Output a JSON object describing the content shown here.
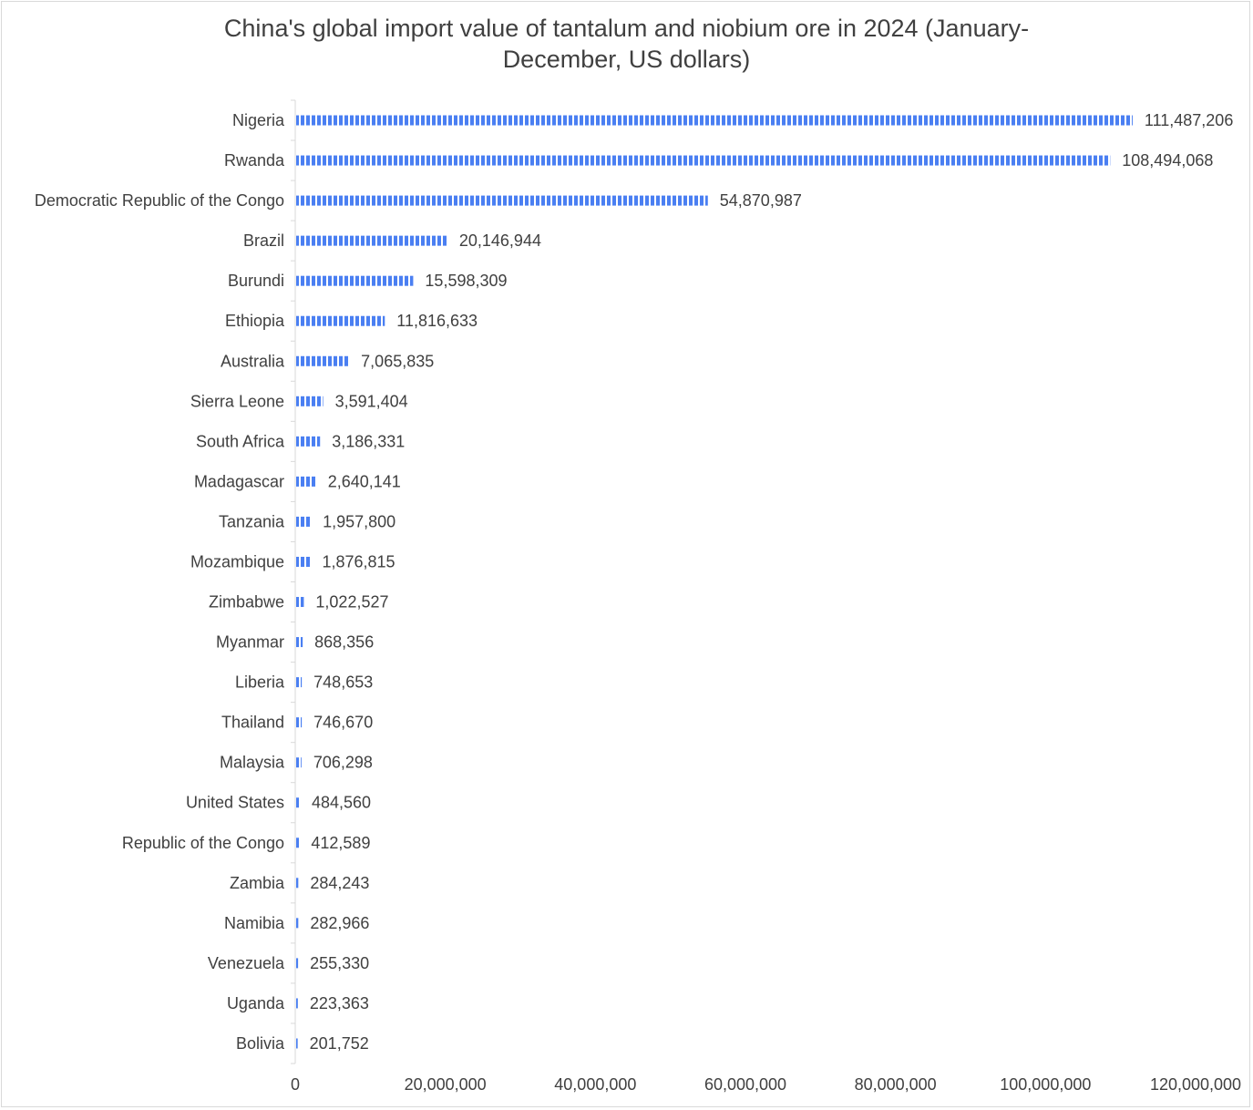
{
  "chart_data": {
    "type": "bar",
    "orientation": "horizontal",
    "title": "China's global import value of tantalum and niobium ore in 2024 (January-December, US dollars)",
    "title_lines": [
      "China's global import value of tantalum and niobium ore in 2024 (January-",
      "December, US dollars)"
    ],
    "categories": [
      "Nigeria",
      "Rwanda",
      "Democratic Republic of the Congo",
      "Brazil",
      "Burundi",
      "Ethiopia",
      "Australia",
      "Sierra Leone",
      "South Africa",
      "Madagascar",
      "Tanzania",
      "Mozambique",
      "Zimbabwe",
      "Myanmar",
      "Liberia",
      "Thailand",
      "Malaysia",
      "United States",
      "Republic of the Congo",
      "Zambia",
      "Namibia",
      "Venezuela",
      "Uganda",
      "Bolivia"
    ],
    "values": [
      111487206,
      108494068,
      54870987,
      20146944,
      15598309,
      11816633,
      7065835,
      3591404,
      3186331,
      2640141,
      1957800,
      1876815,
      1022527,
      868356,
      748653,
      746670,
      706298,
      484560,
      412589,
      284243,
      282966,
      255330,
      223363,
      201752
    ],
    "value_labels": [
      "111,487,206",
      "108,494,068",
      "54,870,987",
      "20,146,944",
      "15,598,309",
      "11,816,633",
      "7,065,835",
      "3,591,404",
      "3,186,331",
      "2,640,141",
      "1,957,800",
      "1,876,815",
      "1,022,527",
      "868,356",
      "748,653",
      "746,670",
      "706,298",
      "484,560",
      "412,589",
      "284,243",
      "282,966",
      "255,330",
      "223,363",
      "201,752"
    ],
    "xlim": [
      0,
      120000000
    ],
    "xticks": [
      0,
      20000000,
      40000000,
      60000000,
      80000000,
      100000000,
      120000000
    ],
    "xtick_labels": [
      "0",
      "20,000,000",
      "40,000,000",
      "60,000,000",
      "80,000,000",
      "100,000,000",
      "120,000,000"
    ],
    "grid": false,
    "legend": "none",
    "bar_color": "#4a7ff2",
    "bar_pattern": "vertical stripes"
  }
}
